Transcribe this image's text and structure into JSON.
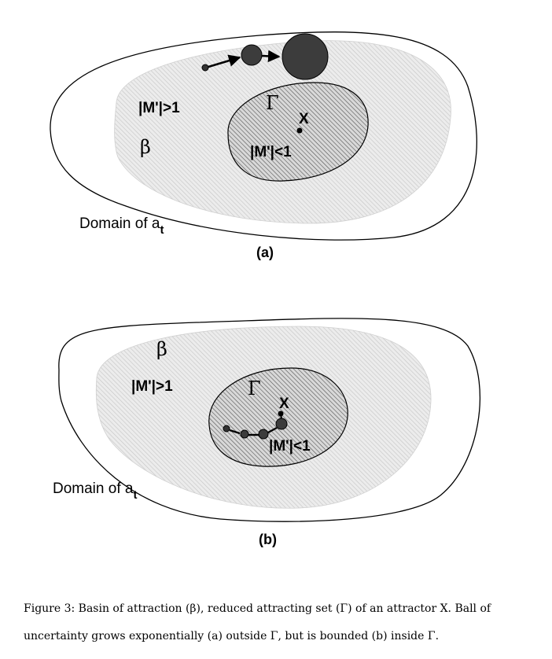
{
  "panel_a": {
    "label": "(a)",
    "outer_label": "|M'|>1",
    "beta": "β",
    "gamma": "Γ",
    "attractor": "X",
    "inner_label": "|M'|<1",
    "domain_text": "Domain of a",
    "domain_sub": "t"
  },
  "panel_b": {
    "label": "(b)",
    "outer_label": "|M'|>1",
    "beta": "β",
    "gamma": "Γ",
    "attractor": "X",
    "inner_label": "|M'|<1",
    "domain_text": "Domain of a",
    "domain_sub": "t"
  },
  "caption": {
    "line1": "Figure 3: Basin of attraction (β), reduced attracting set (Γ) of an attractor X. Ball of",
    "line2": "uncertainty grows exponentially (a) outside Γ, but is bounded (b) inside Γ."
  },
  "colors": {
    "basin_fill": "#e9e9e9",
    "basin_hatch": "#c8c8c8",
    "gamma_fill": "#d6d6d6",
    "gamma_hatch": "#555555",
    "ball": "#3c3c3c"
  }
}
